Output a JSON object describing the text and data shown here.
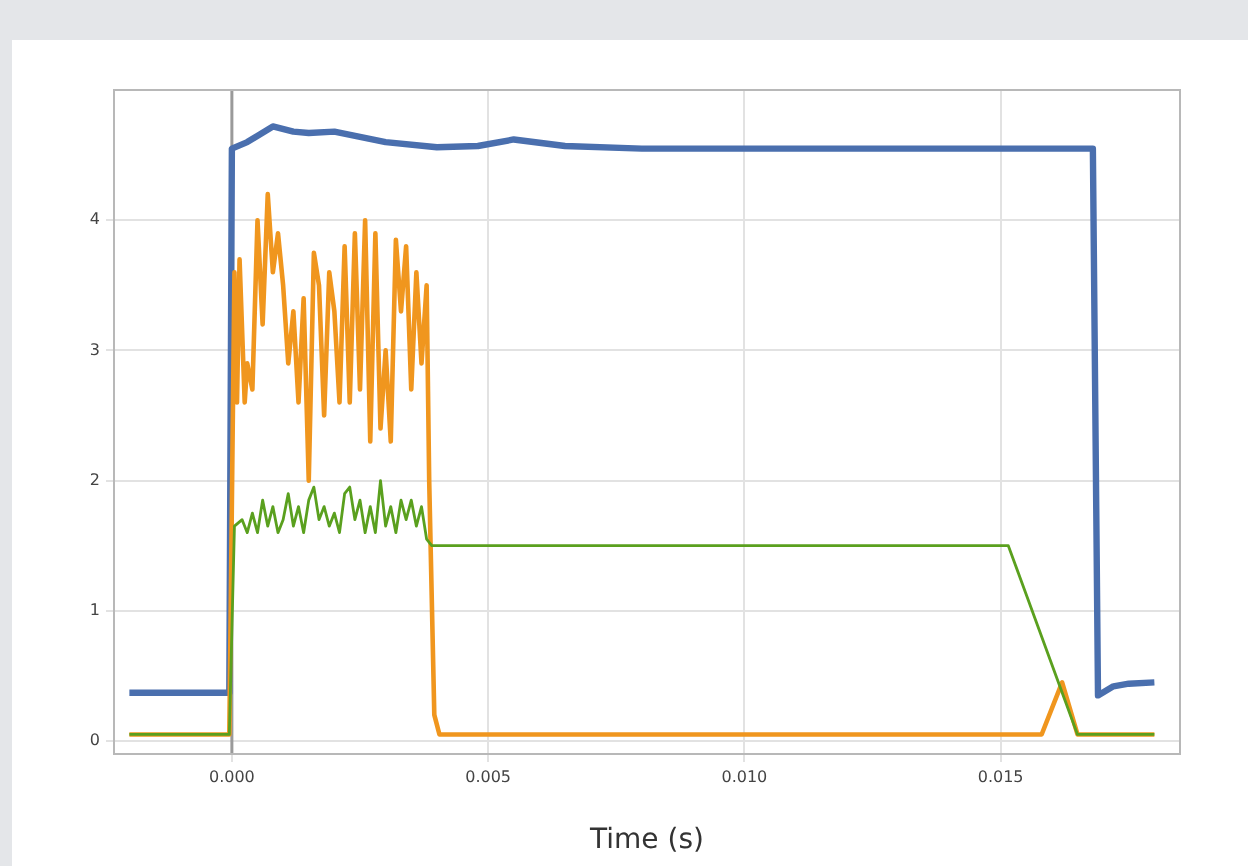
{
  "chart_data": {
    "type": "line",
    "xlabel": "Time (s)",
    "xlim": [
      -0.0023,
      0.0185
    ],
    "ylim": [
      -0.1,
      5
    ],
    "xticks": [
      {
        "value": 0,
        "label": "0.000"
      },
      {
        "value": 0.005,
        "label": "0.005"
      },
      {
        "value": 0.01,
        "label": "0.010"
      },
      {
        "value": 0.015,
        "label": "0.015"
      }
    ],
    "yticks": [
      0,
      1,
      2,
      3,
      4
    ],
    "grid": true,
    "legend": false,
    "marker": "none",
    "line_style": "solid",
    "ref_lines": [
      {
        "axis": "x",
        "value": 0,
        "color": "#9a9a9a"
      }
    ],
    "series": [
      {
        "color": "#4a6fae",
        "x": [
          -0.002,
          -0.001,
          -5e-05,
          0,
          0.0003,
          0.0008,
          0.0012,
          0.0015,
          0.002,
          0.0025,
          0.003,
          0.004,
          0.0048,
          0.0055,
          0.0065,
          0.008,
          0.01,
          0.012,
          0.014,
          0.0168,
          0.0169,
          0.0172,
          0.0175,
          0.018
        ],
        "values": [
          0.37,
          0.37,
          0.37,
          4.55,
          4.6,
          4.72,
          4.68,
          4.67,
          4.68,
          4.64,
          4.6,
          4.56,
          4.57,
          4.62,
          4.57,
          4.55,
          4.55,
          4.55,
          4.55,
          4.55,
          0.35,
          0.42,
          0.44,
          0.45
        ]
      },
      {
        "color": "#f0961e",
        "x": [
          -0.002,
          -5e-05,
          5e-05,
          0.0001,
          0.00015,
          0.00025,
          0.0003,
          0.0004,
          0.0005,
          0.0006,
          0.0007,
          0.0008,
          0.0009,
          0.001,
          0.0011,
          0.0012,
          0.0013,
          0.0014,
          0.0015,
          0.0016,
          0.0017,
          0.0018,
          0.0019,
          0.002,
          0.0021,
          0.0022,
          0.0023,
          0.0024,
          0.0025,
          0.0026,
          0.0027,
          0.0028,
          0.0029,
          0.003,
          0.0031,
          0.0032,
          0.0033,
          0.0034,
          0.0035,
          0.0036,
          0.0037,
          0.0038,
          0.00385,
          0.00395,
          0.00405,
          0.008,
          0.0158,
          0.0162,
          0.0165,
          0.018
        ],
        "values": [
          0.05,
          0.05,
          3.6,
          2.6,
          3.7,
          2.6,
          2.9,
          2.7,
          4.0,
          3.2,
          4.2,
          3.6,
          3.9,
          3.5,
          2.9,
          3.3,
          2.6,
          3.4,
          2.0,
          3.75,
          3.5,
          2.5,
          3.6,
          3.3,
          2.6,
          3.8,
          2.6,
          3.9,
          2.7,
          4.0,
          2.3,
          3.9,
          2.4,
          3.0,
          2.3,
          3.85,
          3.3,
          3.8,
          2.7,
          3.6,
          2.9,
          3.5,
          2.0,
          0.2,
          0.05,
          0.05,
          0.05,
          0.45,
          0.05,
          0.05
        ]
      },
      {
        "color": "#5aa01e",
        "x": [
          -0.002,
          -5e-05,
          5e-05,
          0.0002,
          0.0003,
          0.0004,
          0.0005,
          0.0006,
          0.0007,
          0.0008,
          0.0009,
          0.001,
          0.0011,
          0.0012,
          0.0013,
          0.0014,
          0.0015,
          0.0016,
          0.0017,
          0.0018,
          0.0019,
          0.002,
          0.0021,
          0.0022,
          0.0023,
          0.0024,
          0.0025,
          0.0026,
          0.0027,
          0.0028,
          0.0029,
          0.003,
          0.0031,
          0.0032,
          0.0033,
          0.0034,
          0.0035,
          0.0036,
          0.0037,
          0.0038,
          0.0039,
          0.01,
          0.01515,
          0.0165,
          0.018
        ],
        "values": [
          0.05,
          0.05,
          1.65,
          1.7,
          1.6,
          1.75,
          1.6,
          1.85,
          1.65,
          1.8,
          1.6,
          1.7,
          1.9,
          1.65,
          1.8,
          1.6,
          1.85,
          1.95,
          1.7,
          1.8,
          1.65,
          1.75,
          1.6,
          1.9,
          1.95,
          1.7,
          1.85,
          1.6,
          1.8,
          1.6,
          2.0,
          1.65,
          1.8,
          1.6,
          1.85,
          1.7,
          1.85,
          1.65,
          1.8,
          1.55,
          1.5,
          1.5,
          1.5,
          0.05,
          0.05
        ]
      }
    ]
  }
}
